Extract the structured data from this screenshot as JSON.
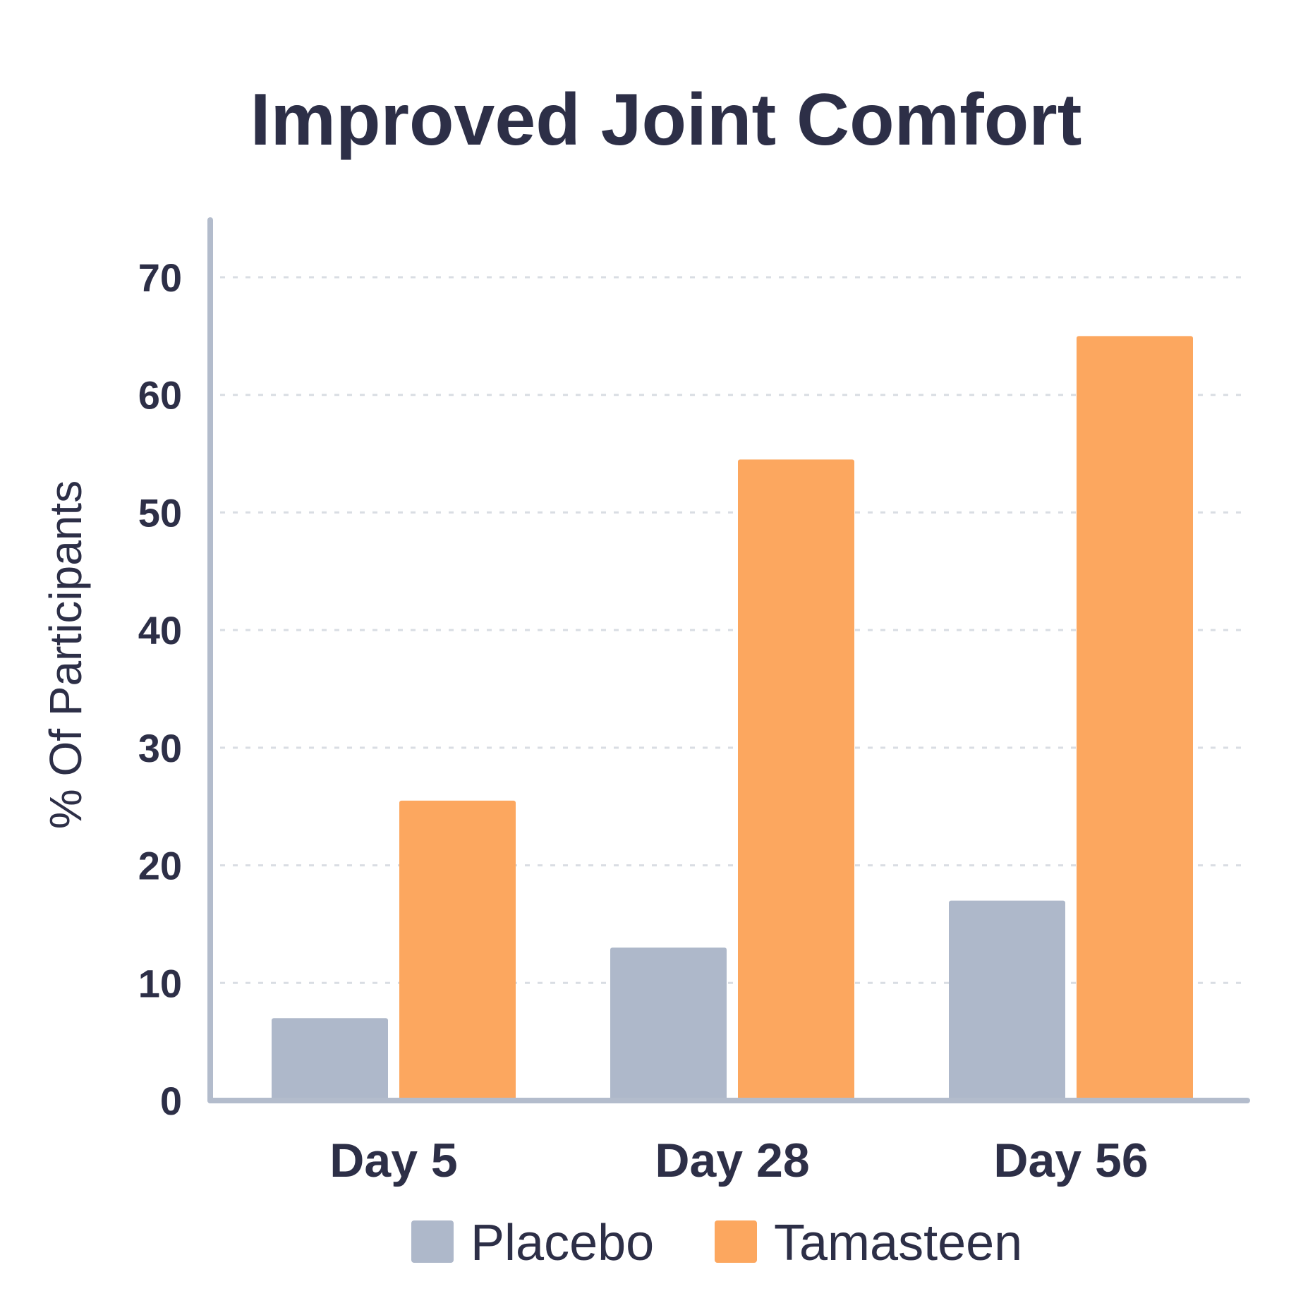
{
  "chart_data": {
    "type": "bar",
    "title": "Improved Joint Comfort",
    "xlabel": "",
    "ylabel": "% Of Participants",
    "categories": [
      "Day 5",
      "Day 28",
      "Day 56"
    ],
    "series": [
      {
        "name": "Placebo",
        "values": [
          7,
          13,
          17
        ],
        "color": "#aeb8ca"
      },
      {
        "name": "Tamasteen",
        "values": [
          25.5,
          54.5,
          65
        ],
        "color": "#fca75f"
      }
    ],
    "ylim": [
      0,
      70
    ],
    "yticks": [
      0,
      10,
      20,
      30,
      40,
      50,
      60,
      70
    ],
    "grid": true,
    "legend_position": "bottom"
  },
  "colors": {
    "axis": "#b3bccc",
    "grid": "#d9dde3",
    "text": "#2d2f47"
  }
}
